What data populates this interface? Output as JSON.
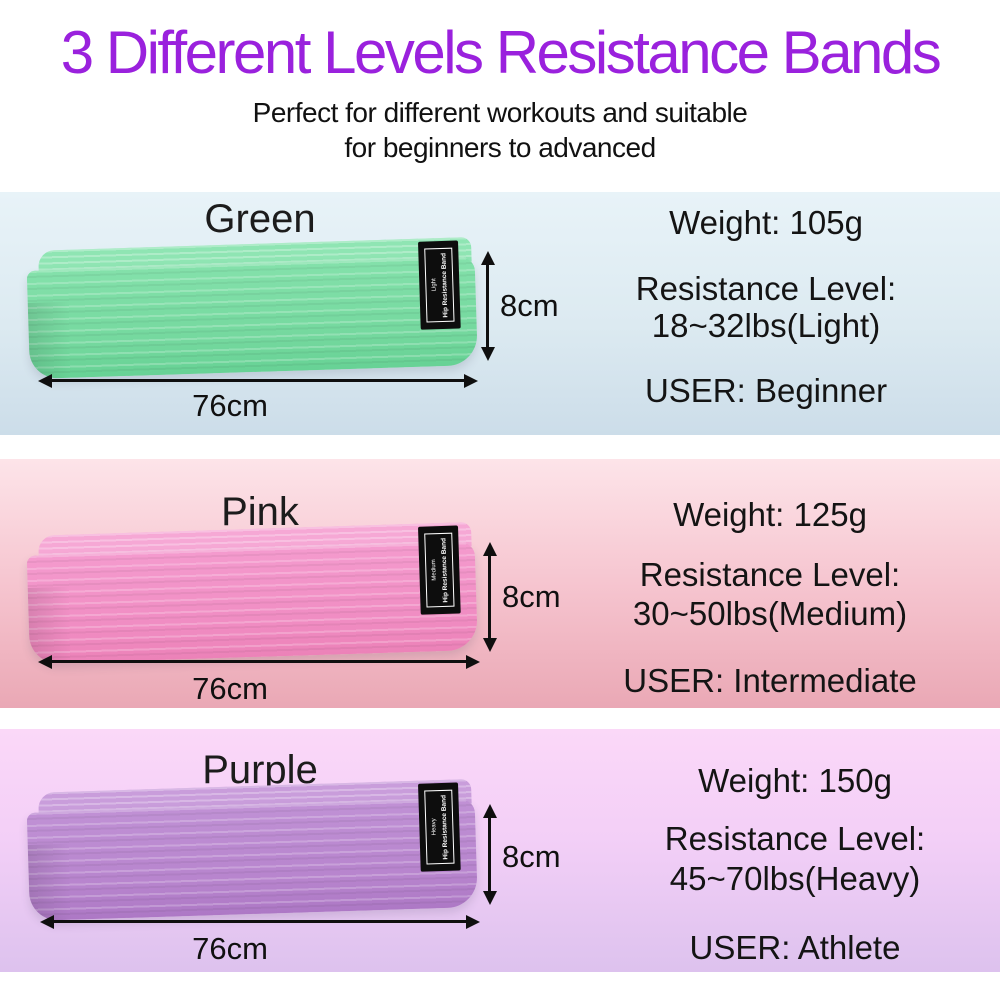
{
  "header": {
    "title": "3 Different Levels Resistance Bands",
    "title_color": "#9a21dd",
    "subtitle_lines": [
      "Perfect for different workouts and suitable",
      "for beginners to advanced"
    ]
  },
  "sections": [
    {
      "name": "Green",
      "band_color": "#74d89e",
      "bg_gradient": [
        "#e8f3f8",
        "#ccdde9"
      ],
      "tag": {
        "level": "Light",
        "brand": "Hip Resistance Band"
      },
      "dimensions": {
        "width": "76cm",
        "height": "8cm"
      },
      "specs": {
        "weight": "Weight: 105g",
        "resistance_label": "Resistance Level:",
        "resistance_value": "18~32lbs(Light)",
        "user": "USER: Beginner"
      }
    },
    {
      "name": "Pink",
      "band_color": "#f08cc2",
      "bg_gradient": [
        "#fde4e9",
        "#eaa8b5"
      ],
      "tag": {
        "level": "Medium",
        "brand": "Hip Resistance Band"
      },
      "dimensions": {
        "width": "76cm",
        "height": "8cm"
      },
      "specs": {
        "weight": "Weight: 125g",
        "resistance_label": "Resistance Level:",
        "resistance_value": "30~50lbs(Medium)",
        "user": "USER: Intermediate"
      }
    },
    {
      "name": "Purple",
      "band_color": "#b784cd",
      "bg_gradient": [
        "#fbd8f8",
        "#ddc2ee"
      ],
      "tag": {
        "level": "Heavy",
        "brand": "Hip Resistance Band"
      },
      "dimensions": {
        "width": "76cm",
        "height": "8cm"
      },
      "specs": {
        "weight": "Weight: 150g",
        "resistance_label": "Resistance Level:",
        "resistance_value": "45~70lbs(Heavy)",
        "user": "USER: Athlete"
      }
    }
  ]
}
